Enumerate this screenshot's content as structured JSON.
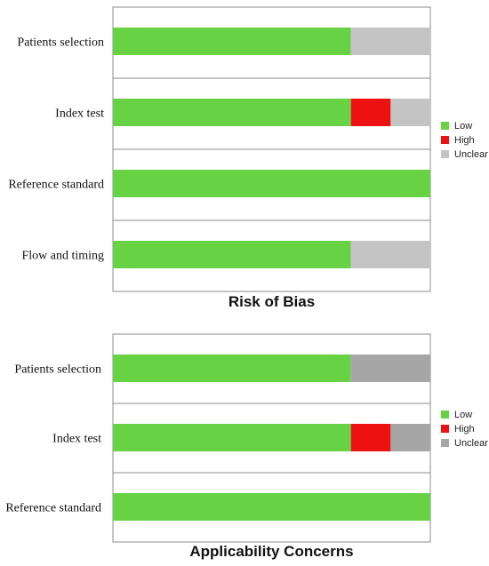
{
  "chart_data": [
    {
      "type": "bar",
      "orientation": "horizontal",
      "stacked": true,
      "title": "Risk of Bias",
      "categories": [
        "Patients selection",
        "Index test",
        "Reference standard",
        "Flow and timing"
      ],
      "series": [
        {
          "name": "Low",
          "values": [
            75,
            75,
            100,
            75
          ]
        },
        {
          "name": "High",
          "values": [
            0,
            12.5,
            0,
            0
          ]
        },
        {
          "name": "Unclear",
          "values": [
            25,
            12.5,
            0,
            25
          ]
        }
      ],
      "xlim": [
        0,
        100
      ],
      "grid": false,
      "legend": "right",
      "colors": {
        "Low": "#66d244",
        "High": "#ee1111",
        "Unclear": "#c4c4c4"
      }
    },
    {
      "type": "bar",
      "orientation": "horizontal",
      "stacked": true,
      "title": "Applicability Concerns",
      "categories": [
        "Patients selection",
        "Index test",
        "Reference standard"
      ],
      "series": [
        {
          "name": "Low",
          "values": [
            75,
            75,
            100
          ]
        },
        {
          "name": "High",
          "values": [
            0,
            12.5,
            0
          ]
        },
        {
          "name": "Unclear",
          "values": [
            25,
            12.5,
            0
          ]
        }
      ],
      "xlim": [
        0,
        100
      ],
      "grid": false,
      "legend": "right",
      "colors": {
        "Low": "#66d244",
        "High": "#ee1111",
        "Unclear": "#a6a6a6"
      }
    }
  ]
}
